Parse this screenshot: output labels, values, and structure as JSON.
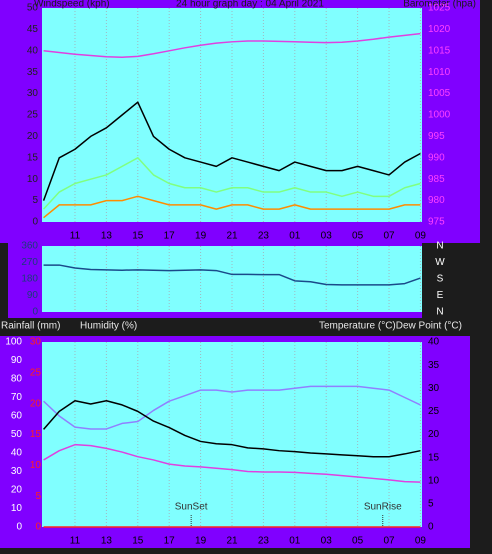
{
  "chart_data": [
    {
      "type": "line",
      "title": "24 hour graph day : 04 April 2021",
      "y_label": "Windspeed (kph)",
      "y2_label": "Barometer (hpa)",
      "x": [
        9,
        10,
        11,
        12,
        13,
        14,
        15,
        16,
        17,
        18,
        19,
        20,
        21,
        22,
        23,
        24,
        25,
        26,
        27,
        28,
        29,
        30,
        31,
        32,
        33
      ],
      "xlim": [
        8.9,
        33.1
      ],
      "xticks": [
        11,
        13,
        15,
        17,
        19,
        21,
        23,
        {
          "value": 25,
          "label": "01"
        },
        {
          "value": 27,
          "label": "03"
        },
        {
          "value": 29,
          "label": "05"
        },
        {
          "value": 31,
          "label": "07"
        },
        {
          "value": 33,
          "label": "09"
        }
      ],
      "ylim": [
        0,
        50
      ],
      "yticks": [
        0,
        5,
        10,
        15,
        20,
        25,
        30,
        35,
        40,
        45,
        50
      ],
      "y2lim": [
        975,
        1025
      ],
      "y2ticks": [
        975,
        980,
        985,
        990,
        995,
        1000,
        1005,
        1010,
        1015,
        1020,
        1025
      ],
      "grid": true,
      "series": [
        {
          "color": "#000000",
          "values": [
            5,
            15,
            17,
            20,
            22,
            25,
            28,
            20,
            17,
            15,
            14,
            13,
            15,
            14,
            13,
            12,
            14,
            13,
            12,
            12,
            13,
            12,
            11,
            14,
            16
          ]
        },
        {
          "color": "#80ff80",
          "values": [
            3,
            7,
            9,
            10,
            11,
            13,
            15,
            11,
            9,
            8,
            8,
            7,
            8,
            8,
            7,
            7,
            8,
            7,
            7,
            6,
            7,
            6,
            6,
            8,
            9
          ]
        },
        {
          "color": "#ff8c00",
          "values": [
            1,
            4,
            4,
            4,
            5,
            5,
            6,
            5,
            4,
            4,
            4,
            3,
            4,
            4,
            3,
            3,
            4,
            3,
            3,
            3,
            3,
            3,
            3,
            4,
            4
          ]
        },
        {
          "color": "#e040e0",
          "axis": "y2",
          "values": [
            1015.0,
            1014.6,
            1014.2,
            1013.9,
            1013.6,
            1013.5,
            1013.7,
            1014.3,
            1015.0,
            1015.7,
            1016.3,
            1016.8,
            1017.1,
            1017.3,
            1017.3,
            1017.2,
            1017.1,
            1017.0,
            1016.9,
            1017.0,
            1017.3,
            1017.7,
            1018.2,
            1018.6,
            1019.0
          ]
        }
      ]
    },
    {
      "type": "line",
      "x": [
        9,
        10,
        11,
        12,
        13,
        14,
        15,
        16,
        17,
        18,
        19,
        20,
        21,
        22,
        23,
        24,
        25,
        26,
        27,
        28,
        29,
        30,
        31,
        32,
        33
      ],
      "xlim": [
        8.9,
        33.1
      ],
      "xticks": [
        11,
        13,
        15,
        17,
        19,
        21,
        23,
        25,
        27,
        29,
        31,
        33
      ],
      "ylim": [
        0,
        360
      ],
      "yticks": [
        0,
        90,
        180,
        270,
        360
      ],
      "y2lim": [
        0,
        360
      ],
      "y2ticks": [
        {
          "value": 360,
          "label": "N"
        },
        {
          "value": 270,
          "label": "W"
        },
        {
          "value": 180,
          "label": "S"
        },
        {
          "value": 90,
          "label": "E"
        },
        {
          "value": 0,
          "label": "N"
        }
      ],
      "grid": true,
      "series": [
        {
          "color": "#1a4a8a",
          "values": [
            256,
            256,
            240,
            232,
            230,
            228,
            230,
            228,
            226,
            228,
            230,
            226,
            205,
            205,
            204,
            204,
            170,
            165,
            150,
            148,
            148,
            148,
            148,
            155,
            185
          ]
        }
      ]
    },
    {
      "type": "line",
      "y3_label": "Rainfall (mm)",
      "y_label": "Humidity (%)",
      "y2_label": "Temperature (°C)Dew Point (°C)",
      "x": [
        9,
        10,
        11,
        12,
        13,
        14,
        15,
        16,
        17,
        18,
        19,
        20,
        21,
        22,
        23,
        24,
        25,
        26,
        27,
        28,
        29,
        30,
        31,
        32,
        33
      ],
      "xlim": [
        8.9,
        33.1
      ],
      "xticks": [
        11,
        13,
        15,
        17,
        19,
        21,
        23,
        {
          "value": 25,
          "label": "01"
        },
        {
          "value": 27,
          "label": "03"
        },
        {
          "value": 29,
          "label": "05"
        },
        {
          "value": 31,
          "label": "07"
        },
        {
          "value": 33,
          "label": "09"
        }
      ],
      "ylim": [
        0,
        100
      ],
      "yticks": [
        0,
        10,
        20,
        30,
        40,
        50,
        60,
        70,
        80,
        90,
        100
      ],
      "y2lim": [
        0,
        40
      ],
      "y2ticks": [
        0,
        5,
        10,
        15,
        20,
        25,
        30,
        35,
        40
      ],
      "y3lim": [
        0,
        30
      ],
      "y3ticks": [
        0,
        5,
        10,
        15,
        20,
        25,
        30
      ],
      "grid": true,
      "annotations": [
        {
          "text": "SunSet",
          "x": 18.4
        },
        {
          "text": "SunRise",
          "x": 30.6
        }
      ],
      "series": [
        {
          "color": "#9080ff",
          "values": [
            68,
            60,
            54,
            53,
            53,
            56,
            57,
            63,
            68,
            71,
            74,
            74,
            73,
            74,
            74,
            74,
            75,
            76,
            76,
            76,
            76,
            75,
            74,
            70,
            66
          ]
        },
        {
          "color": "#000000",
          "axis": "y2",
          "values": [
            21.1,
            25.0,
            27.3,
            26.6,
            27.3,
            26.4,
            25.0,
            22.9,
            21.5,
            19.8,
            18.5,
            18.0,
            17.8,
            17.1,
            16.9,
            16.5,
            16.3,
            16.0,
            15.8,
            15.6,
            15.4,
            15.2,
            15.2,
            15.8,
            16.5
          ]
        },
        {
          "color": "#e040e0",
          "axis": "y2",
          "values": [
            14.5,
            16.5,
            17.8,
            17.6,
            17.0,
            16.2,
            15.2,
            14.5,
            13.6,
            13.2,
            13.0,
            12.7,
            12.4,
            12.0,
            11.9,
            11.9,
            11.8,
            11.6,
            11.4,
            11.1,
            10.8,
            10.5,
            10.2,
            9.8,
            9.7
          ]
        },
        {
          "color": "#ff2020",
          "axis": "y3",
          "values": [
            0,
            0,
            0,
            0,
            0,
            0,
            0,
            0,
            0,
            0,
            0,
            0,
            0,
            0,
            0,
            0,
            0,
            0,
            0,
            0,
            0,
            0,
            0,
            0,
            0
          ]
        }
      ]
    }
  ]
}
